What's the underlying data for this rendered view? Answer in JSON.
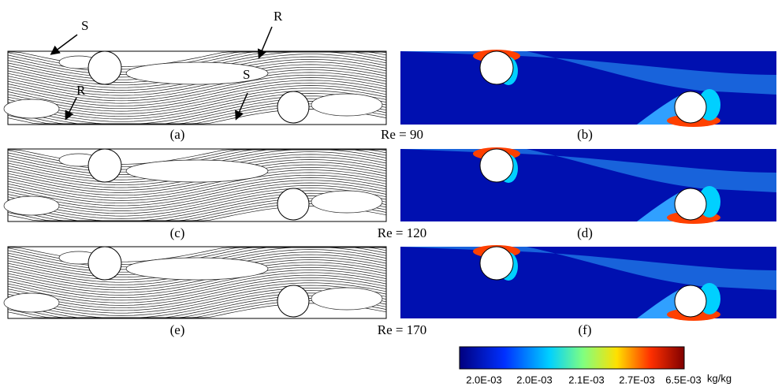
{
  "annotations": [
    "S",
    "R",
    "R",
    "S"
  ],
  "panels": [
    "(a)",
    "(b)",
    "(c)",
    "(d)",
    "(e)",
    "(f)"
  ],
  "reynolds": [
    "Re = 90",
    "Re = 120",
    "Re = 170"
  ],
  "colorbar": {
    "ticks": [
      "2.0E-03",
      "2.0E-03",
      "2.1E-03",
      "2.7E-03",
      "6.5E-03"
    ],
    "unit": "kg/kg"
  }
}
